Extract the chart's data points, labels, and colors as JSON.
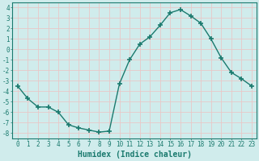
{
  "x": [
    0,
    1,
    2,
    3,
    4,
    5,
    6,
    7,
    8,
    9,
    10,
    11,
    12,
    13,
    14,
    15,
    16,
    17,
    18,
    19,
    20,
    21,
    22,
    23
  ],
  "y": [
    -3.5,
    -4.7,
    -5.5,
    -5.5,
    -6.0,
    -7.2,
    -7.5,
    -7.7,
    -7.9,
    -7.8,
    -3.3,
    -1.0,
    0.5,
    1.2,
    2.3,
    3.5,
    3.8,
    3.2,
    2.5,
    1.0,
    -0.8,
    -2.2,
    -2.8,
    -3.5
  ],
  "line_color": "#1a7a6e",
  "marker": "+",
  "marker_size": 4,
  "marker_lw": 1.2,
  "line_width": 1.0,
  "linestyle": "-",
  "bg_color": "#d0ecec",
  "grid_color": "#e8c8c8",
  "xlabel": "Humidex (Indice chaleur)",
  "xlim": [
    -0.5,
    23.5
  ],
  "ylim": [
    -8.5,
    4.5
  ],
  "yticks": [
    -8,
    -7,
    -6,
    -5,
    -4,
    -3,
    -2,
    -1,
    0,
    1,
    2,
    3,
    4
  ],
  "xticks": [
    0,
    1,
    2,
    3,
    4,
    5,
    6,
    7,
    8,
    9,
    10,
    11,
    12,
    13,
    14,
    15,
    16,
    17,
    18,
    19,
    20,
    21,
    22,
    23
  ],
  "tick_fontsize": 5.5,
  "xlabel_fontsize": 7,
  "label_color": "#1a7a6e"
}
